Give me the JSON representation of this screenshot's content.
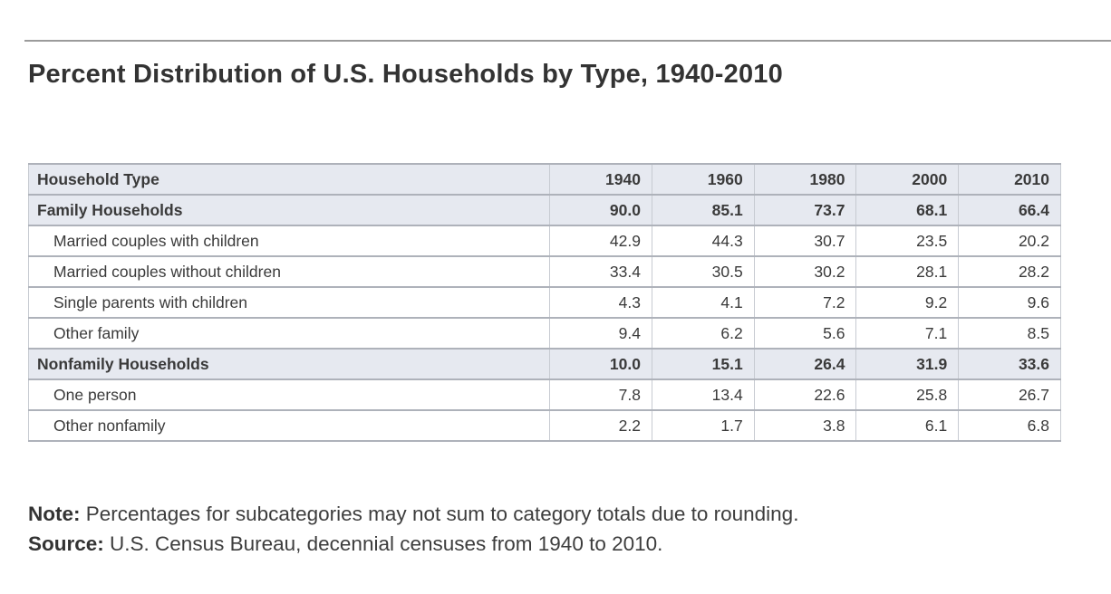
{
  "page": {
    "title": "Percent Distribution of U.S. Households by Type, 1940-2010"
  },
  "table": {
    "header": {
      "label": "Household Type",
      "years": [
        "1940",
        "1960",
        "1980",
        "2000",
        "2010"
      ]
    },
    "rows": [
      {
        "label": "Family Households",
        "emphasis": true,
        "values": [
          "90.0",
          "85.1",
          "73.7",
          "68.1",
          "66.4"
        ]
      },
      {
        "label": "Married couples with children",
        "emphasis": false,
        "values": [
          "42.9",
          "44.3",
          "30.7",
          "23.5",
          "20.2"
        ]
      },
      {
        "label": "Married couples without children",
        "emphasis": false,
        "values": [
          "33.4",
          "30.5",
          "30.2",
          "28.1",
          "28.2"
        ]
      },
      {
        "label": "Single parents with children",
        "emphasis": false,
        "values": [
          "4.3",
          "4.1",
          "7.2",
          "9.2",
          "9.6"
        ]
      },
      {
        "label": "Other family",
        "emphasis": false,
        "values": [
          "9.4",
          "6.2",
          "5.6",
          "7.1",
          "8.5"
        ]
      },
      {
        "label": "Nonfamily Households",
        "emphasis": true,
        "values": [
          "10.0",
          "15.1",
          "26.4",
          "31.9",
          "33.6"
        ]
      },
      {
        "label": "One person",
        "emphasis": false,
        "values": [
          "7.8",
          "13.4",
          "22.6",
          "25.8",
          "26.7"
        ]
      },
      {
        "label": "Other nonfamily",
        "emphasis": false,
        "values": [
          "2.2",
          "1.7",
          "3.8",
          "6.1",
          "6.8"
        ]
      }
    ]
  },
  "notes": {
    "note_label": "Note:",
    "note_text": " Percentages for subcategories may not sum to category totals due to rounding.",
    "source_label": "Source:",
    "source_text": " U.S. Census Bureau, decennial censuses from 1940 to 2010."
  },
  "colors": {
    "header_row_bg": "#e6e9f0",
    "row_border": "#aeb2ba",
    "column_border": "#c7cbd2",
    "top_rule": "#9b9b9b",
    "text": "#3a3a3a",
    "title_text": "#333333",
    "page_bg": "#ffffff"
  },
  "chart_data": {
    "type": "table",
    "title": "Percent Distribution of U.S. Households by Type, 1940-2010",
    "columns": [
      "Household Type",
      "1940",
      "1960",
      "1980",
      "2000",
      "2010"
    ],
    "rows": [
      {
        "label": "Family Households",
        "category_total": true,
        "values": [
          90.0,
          85.1,
          73.7,
          68.1,
          66.4
        ]
      },
      {
        "label": "Married couples with children",
        "category_total": false,
        "values": [
          42.9,
          44.3,
          30.7,
          23.5,
          20.2
        ]
      },
      {
        "label": "Married couples without children",
        "category_total": false,
        "values": [
          33.4,
          30.5,
          30.2,
          28.1,
          28.2
        ]
      },
      {
        "label": "Single parents with children",
        "category_total": false,
        "values": [
          4.3,
          4.1,
          7.2,
          9.2,
          9.6
        ]
      },
      {
        "label": "Other family",
        "category_total": false,
        "values": [
          9.4,
          6.2,
          5.6,
          7.1,
          8.5
        ]
      },
      {
        "label": "Nonfamily Households",
        "category_total": true,
        "values": [
          10.0,
          15.1,
          26.4,
          31.9,
          33.6
        ]
      },
      {
        "label": "One person",
        "category_total": false,
        "values": [
          7.8,
          13.4,
          22.6,
          25.8,
          26.7
        ]
      },
      {
        "label": "Other nonfamily",
        "category_total": false,
        "values": [
          2.2,
          1.7,
          3.8,
          6.1,
          6.8
        ]
      }
    ],
    "units": "percent",
    "note": "Percentages for subcategories may not sum to category totals due to rounding.",
    "source": "U.S. Census Bureau, decennial censuses from 1940 to 2010."
  }
}
